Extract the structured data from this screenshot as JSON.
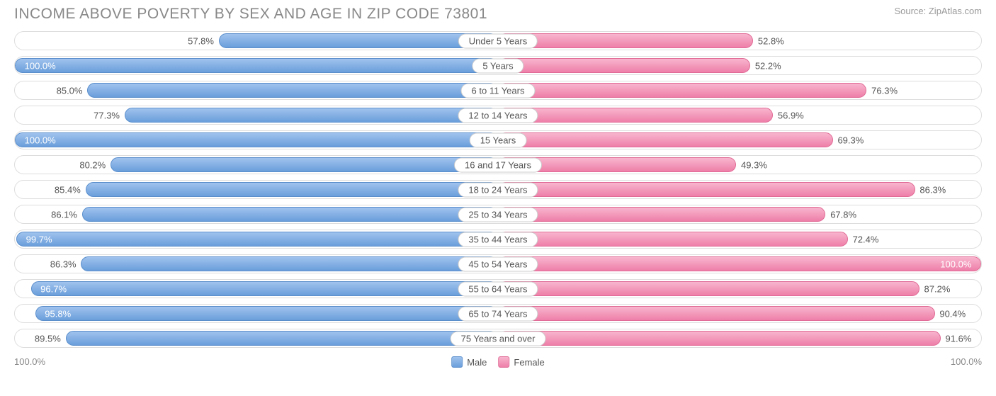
{
  "title": "INCOME ABOVE POVERTY BY SEX AND AGE IN ZIP CODE 73801",
  "source": "Source: ZipAtlas.com",
  "axis_left": "100.0%",
  "axis_right": "100.0%",
  "legend": {
    "male": "Male",
    "female": "Female"
  },
  "colors": {
    "male_top": "#a0c3ee",
    "male_bottom": "#6a9edb",
    "male_border": "#5a8ecb",
    "female_top": "#f8b5ce",
    "female_bottom": "#ee7fa8",
    "female_border": "#e06a95",
    "row_border": "#dddddd",
    "text": "#555555",
    "title_color": "#888888"
  },
  "max": 100.0,
  "rows": [
    {
      "age": "Under 5 Years",
      "male": 57.8,
      "female": 52.8
    },
    {
      "age": "5 Years",
      "male": 100.0,
      "female": 52.2
    },
    {
      "age": "6 to 11 Years",
      "male": 85.0,
      "female": 76.3
    },
    {
      "age": "12 to 14 Years",
      "male": 77.3,
      "female": 56.9
    },
    {
      "age": "15 Years",
      "male": 100.0,
      "female": 69.3
    },
    {
      "age": "16 and 17 Years",
      "male": 80.2,
      "female": 49.3
    },
    {
      "age": "18 to 24 Years",
      "male": 85.4,
      "female": 86.3
    },
    {
      "age": "25 to 34 Years",
      "male": 86.1,
      "female": 67.8
    },
    {
      "age": "35 to 44 Years",
      "male": 99.7,
      "female": 72.4
    },
    {
      "age": "45 to 54 Years",
      "male": 86.3,
      "female": 100.0
    },
    {
      "age": "55 to 64 Years",
      "male": 96.7,
      "female": 87.2
    },
    {
      "age": "65 to 74 Years",
      "male": 95.8,
      "female": 90.4
    },
    {
      "age": "75 Years and over",
      "male": 89.5,
      "female": 91.6
    }
  ]
}
